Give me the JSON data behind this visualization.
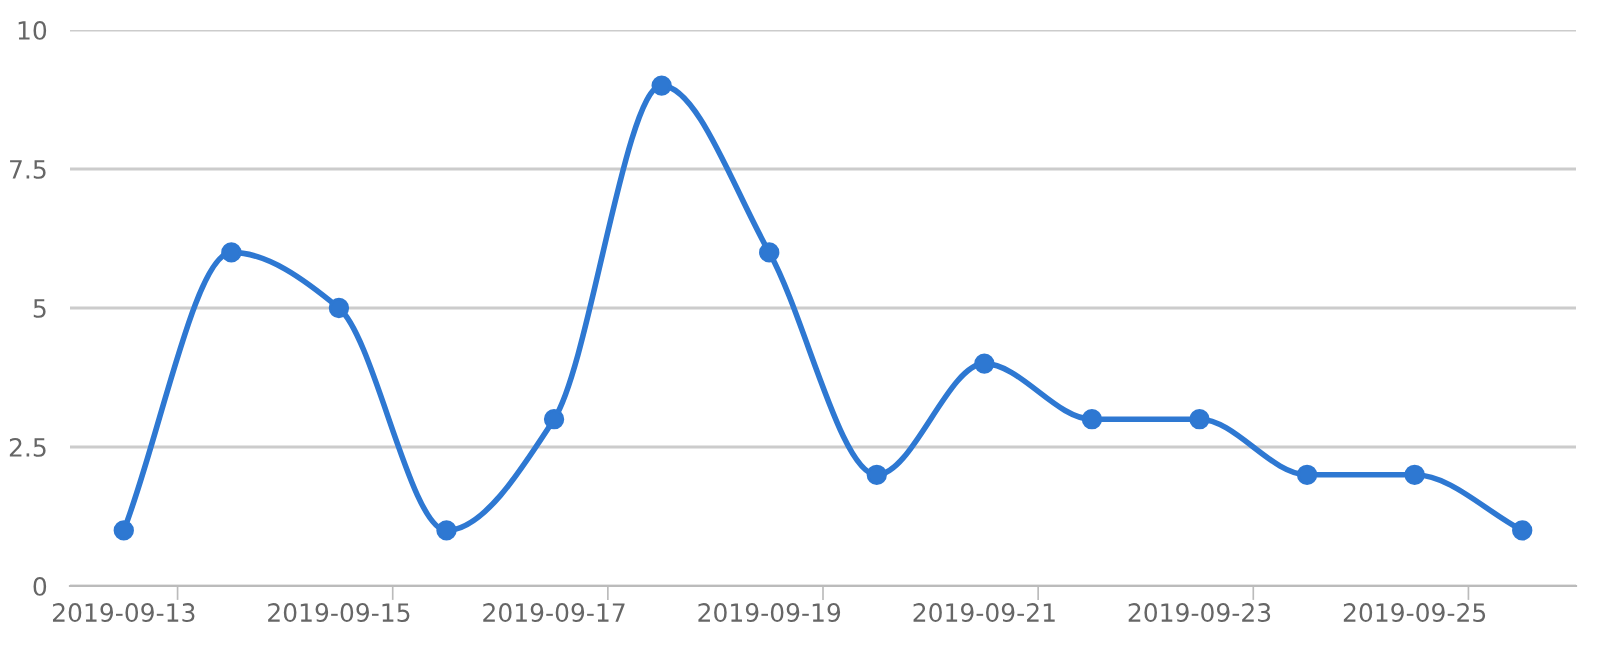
{
  "chart_data": {
    "type": "line",
    "categories": [
      "2019-09-13",
      null,
      "2019-09-15",
      null,
      "2019-09-17",
      null,
      "2019-09-19",
      null,
      "2019-09-21",
      null,
      "2019-09-23",
      null,
      "2019-09-25",
      null
    ],
    "series": [
      {
        "color": "#2e78d2",
        "values": [
          1,
          6,
          5,
          1,
          3,
          9,
          6,
          2,
          4,
          3,
          3,
          2,
          2,
          1
        ]
      }
    ],
    "ylim": [
      0,
      10
    ],
    "yticks": [
      0,
      2.5,
      5,
      7.5,
      10
    ],
    "grid": "y",
    "marker": "circle",
    "line_style": "solid"
  }
}
